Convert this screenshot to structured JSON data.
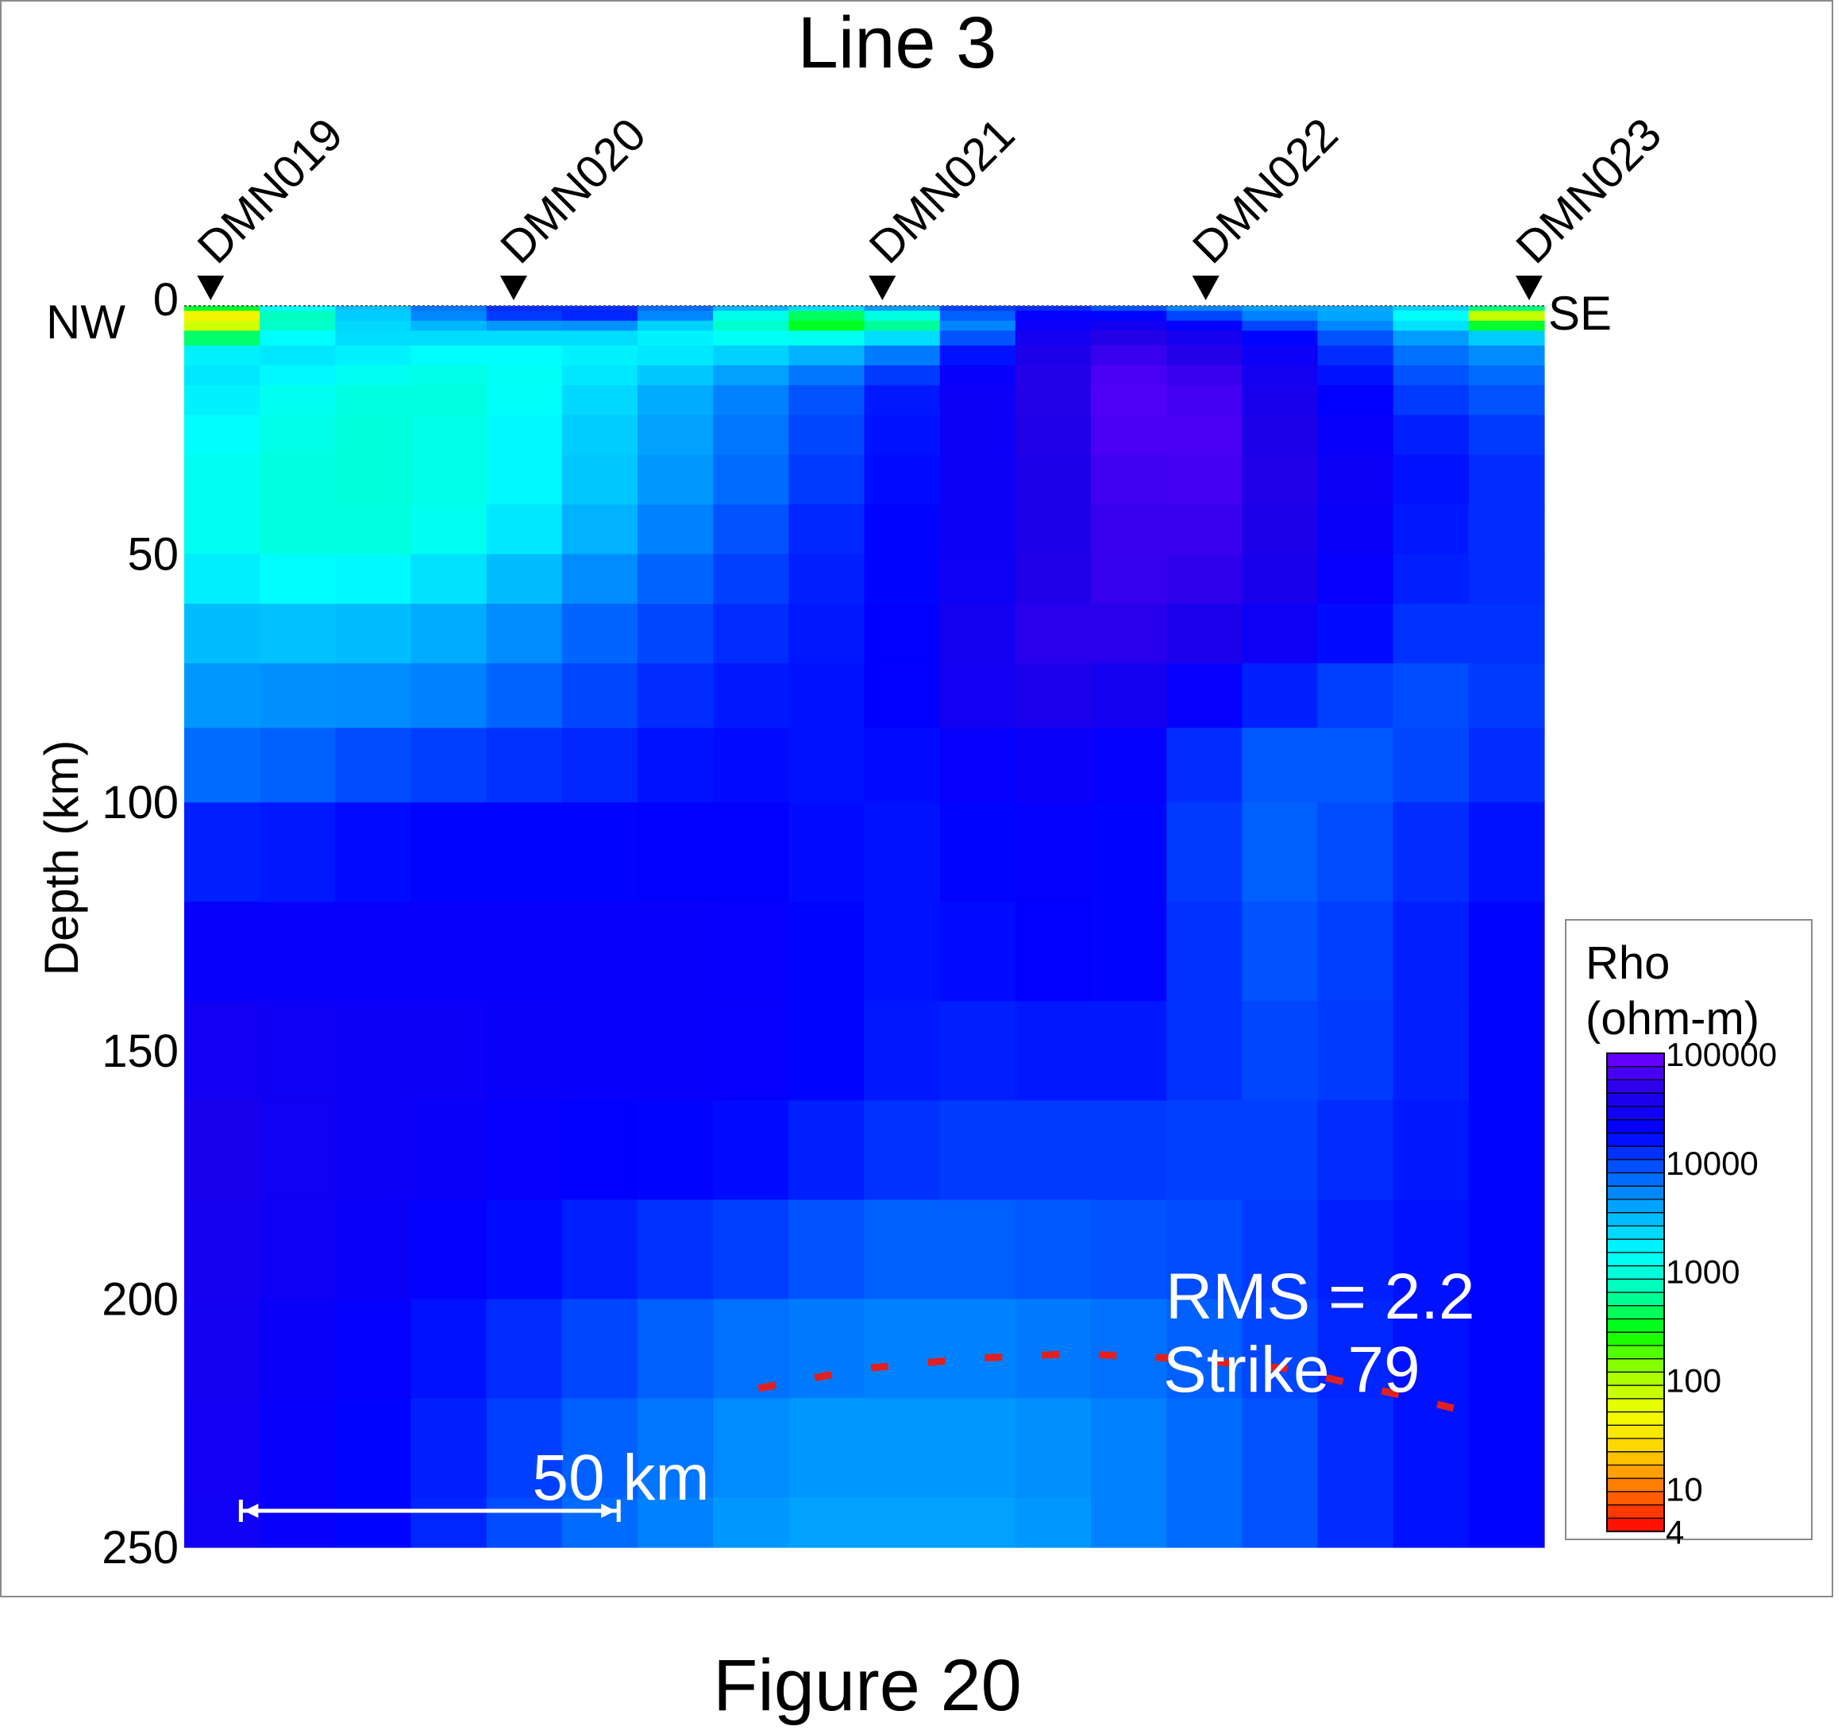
{
  "chart_data": {
    "type": "heatmap",
    "title": "Line 3",
    "ylabel": "Depth (km)",
    "y_ticks": [
      "0",
      "50",
      "100",
      "150",
      "200",
      "250"
    ],
    "ylim": [
      0,
      250
    ],
    "x_length_km": 180,
    "orientation": {
      "left": "NW",
      "right": "SE"
    },
    "stations": [
      {
        "name": "DMN019",
        "x_km": 3.5
      },
      {
        "name": "DMN020",
        "x_km": 43.6
      },
      {
        "name": "DMN021",
        "x_km": 92.4
      },
      {
        "name": "DMN022",
        "x_km": 135.2
      },
      {
        "name": "DMN023",
        "x_km": 178.0
      }
    ],
    "colorbar": {
      "title_line1": "Rho",
      "title_line2": "(ohm-m)",
      "tick_labels": [
        "100000",
        "10000",
        "1000",
        "100",
        "10",
        "4"
      ],
      "tick_values": [
        100000,
        10000,
        1000,
        100,
        10,
        4
      ],
      "log_min": 0.6,
      "log_max": 5.0,
      "scale": "log10",
      "stops": [
        "#ff0000",
        "#ff7000",
        "#ffd000",
        "#f0ff00",
        "#a0ff00",
        "#00ff00",
        "#00ffb0",
        "#00ffff",
        "#00b0ff",
        "#0060ff",
        "#0000ff",
        "#2000e8",
        "#7000ff"
      ]
    },
    "resistivity_model": {
      "description_columns_km": [
        0,
        10,
        20,
        30,
        40,
        50,
        60,
        70,
        80,
        90,
        100,
        110,
        120,
        130,
        140,
        150,
        160,
        170,
        180
      ],
      "depths_km": [
        0,
        1,
        3,
        5,
        8,
        12,
        16,
        22,
        30,
        40,
        50,
        60,
        72,
        85,
        100,
        120,
        140,
        160,
        180,
        200,
        220,
        240,
        250
      ],
      "log10_rho": [
        [
          3.2,
          3.5,
          3.3,
          3.6,
          3.9,
          4.0,
          3.7,
          3.8,
          3.6,
          3.5,
          3.8,
          4.0,
          3.9,
          3.7,
          3.5,
          3.6,
          3.6,
          3.5,
          3.4
        ],
        [
          0.8,
          2.6,
          3.3,
          3.6,
          4.1,
          4.4,
          4.3,
          3.6,
          3.0,
          3.2,
          4.0,
          4.3,
          4.2,
          4.0,
          3.7,
          3.6,
          3.5,
          2.9,
          1.0
        ],
        [
          0.7,
          2.4,
          3.2,
          3.5,
          3.7,
          4.0,
          3.8,
          3.2,
          2.5,
          1.8,
          3.1,
          4.2,
          4.5,
          4.3,
          4.0,
          3.7,
          3.5,
          2.7,
          1.0
        ],
        [
          1.5,
          2.8,
          3.3,
          3.4,
          3.4,
          3.5,
          3.4,
          3.1,
          2.9,
          2.8,
          3.3,
          4.3,
          4.6,
          4.6,
          4.3,
          4.0,
          3.7,
          3.3,
          3.1
        ],
        [
          3.0,
          3.3,
          3.3,
          3.3,
          3.2,
          3.2,
          3.2,
          3.2,
          3.3,
          3.4,
          3.8,
          4.4,
          4.7,
          4.7,
          4.5,
          4.2,
          3.9,
          3.6,
          3.6
        ],
        [
          3.3,
          3.3,
          3.2,
          3.1,
          3.1,
          3.2,
          3.3,
          3.4,
          3.6,
          3.8,
          4.1,
          4.5,
          4.8,
          4.8,
          4.6,
          4.3,
          4.0,
          3.8,
          3.8
        ],
        [
          3.3,
          3.2,
          3.1,
          3.0,
          3.0,
          3.2,
          3.4,
          3.6,
          3.8,
          4.0,
          4.3,
          4.5,
          4.8,
          4.9,
          4.7,
          4.4,
          4.1,
          3.9,
          3.9
        ],
        [
          3.3,
          3.1,
          3.0,
          3.0,
          3.1,
          3.3,
          3.5,
          3.7,
          3.9,
          4.1,
          4.3,
          4.5,
          4.8,
          4.9,
          4.7,
          4.4,
          4.2,
          4.0,
          4.0
        ],
        [
          3.2,
          3.1,
          3.0,
          3.0,
          3.1,
          3.3,
          3.5,
          3.7,
          3.9,
          4.1,
          4.3,
          4.5,
          4.7,
          4.9,
          4.8,
          4.5,
          4.3,
          4.1,
          4.1
        ],
        [
          3.1,
          3.0,
          3.0,
          3.0,
          3.1,
          3.3,
          3.6,
          3.8,
          4.0,
          4.2,
          4.3,
          4.5,
          4.7,
          4.8,
          4.7,
          4.5,
          4.3,
          4.1,
          4.1
        ],
        [
          3.2,
          3.1,
          3.0,
          3.1,
          3.2,
          3.5,
          3.7,
          3.9,
          4.1,
          4.2,
          4.3,
          4.5,
          4.7,
          4.8,
          4.7,
          4.5,
          4.2,
          4.1,
          4.1
        ],
        [
          3.4,
          3.3,
          3.3,
          3.4,
          3.5,
          3.7,
          3.9,
          4.0,
          4.1,
          4.2,
          4.3,
          4.6,
          4.7,
          4.7,
          4.6,
          4.4,
          4.2,
          4.1,
          4.1
        ],
        [
          3.6,
          3.6,
          3.6,
          3.6,
          3.7,
          3.9,
          4.0,
          4.1,
          4.2,
          4.2,
          4.4,
          4.7,
          4.7,
          4.6,
          4.4,
          4.3,
          4.0,
          4.0,
          4.1
        ],
        [
          3.7,
          3.7,
          3.8,
          3.8,
          3.9,
          4.0,
          4.1,
          4.2,
          4.2,
          4.2,
          4.3,
          4.5,
          4.4,
          4.3,
          4.0,
          3.9,
          3.9,
          4.0,
          4.1
        ],
        [
          4.0,
          4.0,
          4.1,
          4.2,
          4.2,
          4.2,
          4.2,
          4.3,
          4.2,
          4.2,
          4.2,
          4.3,
          4.3,
          4.2,
          3.9,
          3.9,
          4.0,
          4.1,
          4.2
        ],
        [
          4.3,
          4.3,
          4.3,
          4.3,
          4.3,
          4.3,
          4.3,
          4.3,
          4.3,
          4.2,
          4.2,
          4.3,
          4.3,
          4.2,
          3.9,
          3.9,
          4.1,
          4.2,
          4.3
        ],
        [
          4.4,
          4.4,
          4.4,
          4.4,
          4.4,
          4.4,
          4.4,
          4.4,
          4.3,
          4.2,
          4.2,
          4.2,
          4.3,
          4.2,
          4.0,
          4.0,
          4.1,
          4.2,
          4.3
        ],
        [
          4.6,
          4.5,
          4.4,
          4.4,
          4.4,
          4.3,
          4.3,
          4.3,
          4.3,
          4.2,
          4.1,
          4.1,
          4.1,
          4.1,
          4.0,
          4.0,
          4.1,
          4.2,
          4.3
        ],
        [
          4.6,
          4.5,
          4.4,
          4.4,
          4.3,
          4.3,
          4.2,
          4.2,
          4.1,
          4.0,
          4.0,
          4.0,
          4.0,
          4.0,
          4.0,
          4.1,
          4.2,
          4.2,
          4.3
        ],
        [
          4.6,
          4.4,
          4.4,
          4.3,
          4.2,
          4.1,
          4.0,
          3.9,
          3.9,
          3.8,
          3.8,
          3.8,
          3.9,
          3.9,
          4.0,
          4.1,
          4.2,
          4.2,
          4.3
        ],
        [
          4.6,
          4.4,
          4.3,
          4.2,
          4.1,
          4.0,
          3.9,
          3.8,
          3.7,
          3.7,
          3.7,
          3.7,
          3.7,
          3.8,
          3.9,
          4.0,
          4.2,
          4.2,
          4.3
        ],
        [
          4.5,
          4.4,
          4.3,
          4.2,
          4.1,
          3.9,
          3.8,
          3.7,
          3.6,
          3.6,
          3.6,
          3.6,
          3.7,
          3.8,
          3.9,
          4.0,
          4.2,
          4.2,
          4.3
        ],
        [
          4.5,
          4.4,
          4.3,
          4.2,
          4.0,
          3.9,
          3.8,
          3.7,
          3.6,
          3.6,
          3.6,
          3.6,
          3.7,
          3.8,
          3.9,
          4.0,
          4.2,
          4.2,
          4.3
        ]
      ]
    },
    "annotations": {
      "rms": "RMS = 2.2",
      "strike": "Strike 79",
      "scale_bar_label": "50 km",
      "scale_bar_km": 50,
      "dashed_line_color": "#e02020",
      "dashed_line_points_km": [
        [
          76,
          218
        ],
        [
          90,
          214
        ],
        [
          104,
          212
        ],
        [
          118,
          211
        ],
        [
          132,
          212
        ],
        [
          146,
          214
        ],
        [
          160,
          219
        ],
        [
          168,
          222
        ]
      ]
    }
  },
  "figure_caption": "Figure 20"
}
